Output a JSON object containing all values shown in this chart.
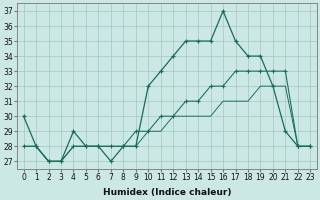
{
  "xlabel": "Humidex (Indice chaleur)",
  "background_color": "#cce8e4",
  "grid_color": "#aaccc8",
  "line_color": "#1a6b5a",
  "x_values": [
    0,
    1,
    2,
    3,
    4,
    5,
    6,
    7,
    8,
    9,
    10,
    11,
    12,
    13,
    14,
    15,
    16,
    17,
    18,
    19,
    20,
    21,
    22,
    23
  ],
  "series1": [
    30,
    28,
    27,
    27,
    29,
    28,
    28,
    27,
    28,
    28,
    32,
    33,
    34,
    35,
    35,
    35,
    37,
    35,
    34,
    34,
    32,
    29,
    28,
    28
  ],
  "series2": [
    28,
    28,
    27,
    27,
    28,
    28,
    28,
    28,
    28,
    28,
    29,
    29,
    30,
    30,
    30,
    30,
    31,
    31,
    31,
    32,
    32,
    32,
    28,
    28
  ],
  "series3": [
    28,
    28,
    27,
    27,
    28,
    28,
    28,
    28,
    28,
    29,
    29,
    30,
    30,
    31,
    31,
    32,
    32,
    33,
    33,
    33,
    33,
    33,
    28,
    28
  ],
  "ylim": [
    26.5,
    37.5
  ],
  "xlim": [
    -0.5,
    23.5
  ],
  "yticks": [
    27,
    28,
    29,
    30,
    31,
    32,
    33,
    34,
    35,
    36,
    37
  ],
  "xticks": [
    0,
    1,
    2,
    3,
    4,
    5,
    6,
    7,
    8,
    9,
    10,
    11,
    12,
    13,
    14,
    15,
    16,
    17,
    18,
    19,
    20,
    21,
    22,
    23
  ],
  "tick_fontsize": 5.5,
  "xlabel_fontsize": 6.5,
  "linewidth": 0.9,
  "markersize": 3.5
}
